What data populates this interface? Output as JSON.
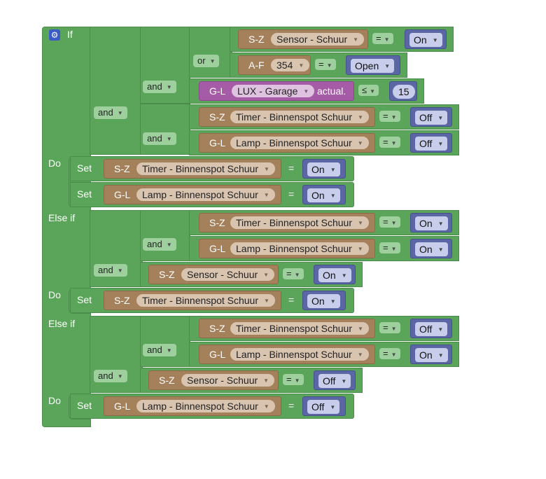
{
  "keywords": {
    "if": "If",
    "do": "Do",
    "else_if": "Else if",
    "and": "and",
    "or": "or",
    "set": "Set"
  },
  "ops": {
    "eq": "=",
    "le": "≤"
  },
  "if_block": {
    "cond_sensor": {
      "prefix": "S-Z",
      "field": "Sensor - Schuur",
      "op": "=",
      "value": "On"
    },
    "cond_af": {
      "prefix": "A-F",
      "field": "354",
      "op": "=",
      "value": "Open"
    },
    "cond_lux": {
      "prefix": "G-L",
      "field": "LUX - Garage",
      "suffix": "actual.",
      "op": "≤",
      "value": "15"
    },
    "cond_timer": {
      "prefix": "S-Z",
      "field": "Timer - Binnenspot Schuur",
      "op": "=",
      "value": "Off"
    },
    "cond_lamp": {
      "prefix": "G-L",
      "field": "Lamp - Binnenspot Schuur",
      "op": "=",
      "value": "Off"
    },
    "do": [
      {
        "prefix": "S-Z",
        "field": "Timer - Binnenspot Schuur",
        "op": "=",
        "value": "On"
      },
      {
        "prefix": "G-L",
        "field": "Lamp - Binnenspot Schuur",
        "op": "=",
        "value": "On"
      }
    ]
  },
  "else_if_1": {
    "cond_timer": {
      "prefix": "S-Z",
      "field": "Timer - Binnenspot Schuur",
      "op": "=",
      "value": "On"
    },
    "cond_lamp": {
      "prefix": "G-L",
      "field": "Lamp - Binnenspot Schuur",
      "op": "=",
      "value": "On"
    },
    "cond_sensor": {
      "prefix": "S-Z",
      "field": "Sensor - Schuur",
      "op": "=",
      "value": "On"
    },
    "do": [
      {
        "prefix": "S-Z",
        "field": "Timer - Binnenspot Schuur",
        "op": "=",
        "value": "On"
      }
    ]
  },
  "else_if_2": {
    "cond_timer": {
      "prefix": "S-Z",
      "field": "Timer - Binnenspot Schuur",
      "op": "=",
      "value": "Off"
    },
    "cond_lamp": {
      "prefix": "G-L",
      "field": "Lamp - Binnenspot Schuur",
      "op": "=",
      "value": "On"
    },
    "cond_sensor": {
      "prefix": "S-Z",
      "field": "Sensor - Schuur",
      "op": "=",
      "value": "Off"
    },
    "do": [
      {
        "prefix": "G-L",
        "field": "Lamp - Binnenspot Schuur",
        "op": "=",
        "value": "Off"
      }
    ]
  },
  "colors": {
    "logic": "#5ba55b",
    "device": "#a5815b",
    "sensor": "#a55ba5",
    "value": "#5b67a5"
  },
  "icons": {
    "gear": "gear-icon",
    "dropdown": "dropdown-arrow-icon"
  }
}
